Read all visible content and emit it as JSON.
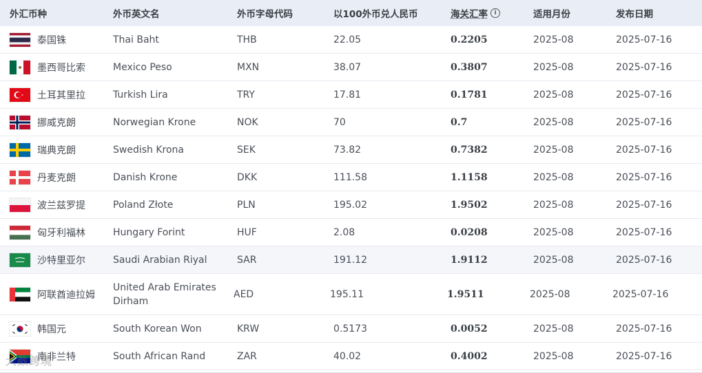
{
  "header": {
    "col_name": "外汇币种",
    "col_english": "外币英文名",
    "col_code": "外币字母代码",
    "col_per100": "以100外币兑人民币",
    "col_rate": "海关汇率",
    "col_month": "适用月份",
    "col_date": "发布日期"
  },
  "rows": [
    {
      "flag": "thailand-flag",
      "name": "泰国铢",
      "english": "Thai Baht",
      "code": "THB",
      "per100": "22.05",
      "rate": "0.2205",
      "month": "2025-08",
      "date": "2025-07-16"
    },
    {
      "flag": "mexico-flag",
      "name": "墨西哥比索",
      "english": "Mexico Peso",
      "code": "MXN",
      "per100": "38.07",
      "rate": "0.3807",
      "month": "2025-08",
      "date": "2025-07-16"
    },
    {
      "flag": "turkey-flag",
      "name": "土耳其里拉",
      "english": "Turkish Lira",
      "code": "TRY",
      "per100": "17.81",
      "rate": "0.1781",
      "month": "2025-08",
      "date": "2025-07-16"
    },
    {
      "flag": "norway-flag",
      "name": "挪威克朗",
      "english": "Norwegian Krone",
      "code": "NOK",
      "per100": "70",
      "rate": "0.7",
      "month": "2025-08",
      "date": "2025-07-16"
    },
    {
      "flag": "sweden-flag",
      "name": "瑞典克朗",
      "english": "Swedish Krona",
      "code": "SEK",
      "per100": "73.82",
      "rate": "0.7382",
      "month": "2025-08",
      "date": "2025-07-16"
    },
    {
      "flag": "denmark-flag",
      "name": "丹麦克朗",
      "english": "Danish Krone",
      "code": "DKK",
      "per100": "111.58",
      "rate": "1.1158",
      "month": "2025-08",
      "date": "2025-07-16"
    },
    {
      "flag": "poland-flag",
      "name": "波兰兹罗提",
      "english": "Poland Złote",
      "code": "PLN",
      "per100": "195.02",
      "rate": "1.9502",
      "month": "2025-08",
      "date": "2025-07-16"
    },
    {
      "flag": "hungary-flag",
      "name": "匈牙利福林",
      "english": "Hungary Forint",
      "code": "HUF",
      "per100": "2.08",
      "rate": "0.0208",
      "month": "2025-08",
      "date": "2025-07-16"
    },
    {
      "flag": "saudi-arabia-flag",
      "name": "沙特里亚尔",
      "english": "Saudi Arabian Riyal",
      "code": "SAR",
      "per100": "191.12",
      "rate": "1.9112",
      "month": "2025-08",
      "date": "2025-07-16"
    },
    {
      "flag": "uae-flag",
      "name": "阿联酋迪拉姆",
      "english": "United Arab Emirates Dirham",
      "code": "AED",
      "per100": "195.11",
      "rate": "1.9511",
      "month": "2025-08",
      "date": "2025-07-16"
    },
    {
      "flag": "south-korea-flag",
      "name": "韩国元",
      "english": "South Korean Won",
      "code": "KRW",
      "per100": "0.5173",
      "rate": "0.0052",
      "month": "2025-08",
      "date": "2025-07-16"
    },
    {
      "flag": "south-africa-flag",
      "name": "南非兰特",
      "english": "South African Rand",
      "code": "ZAR",
      "per100": "40.02",
      "rate": "0.4002",
      "month": "2025-08",
      "date": "2025-07-16"
    }
  ],
  "watermark": "大数跨境"
}
